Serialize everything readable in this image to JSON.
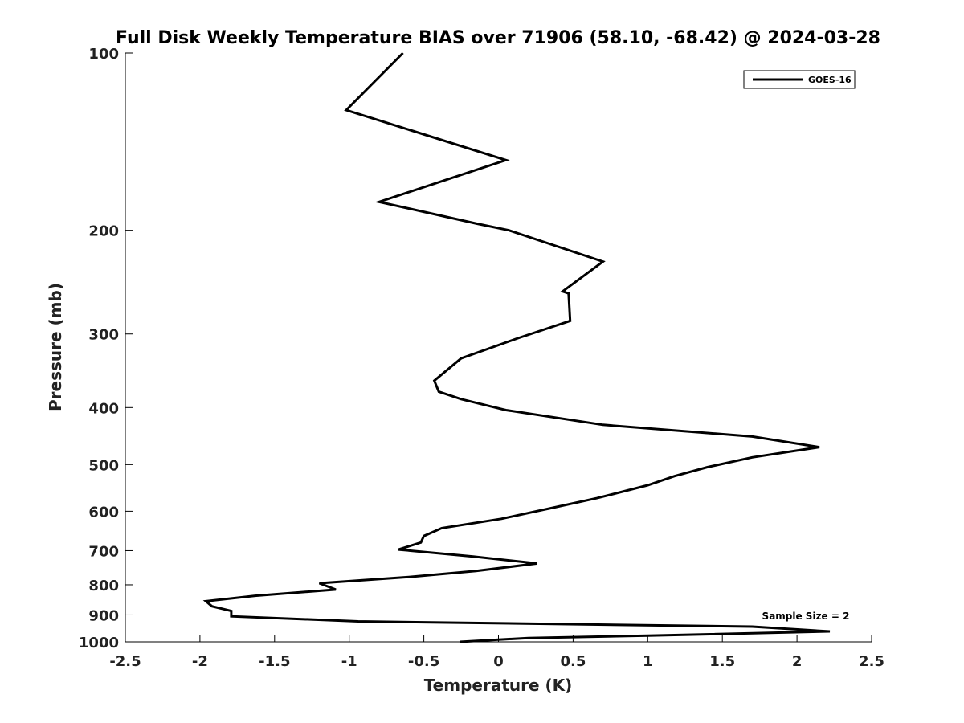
{
  "chart_data": {
    "type": "line",
    "title": "Full Disk Weekly Temperature BIAS over 71906 (58.10, -68.42) @ 2024-03-28",
    "xlabel": "Temperature (K)",
    "ylabel": "Pressure (mb)",
    "xlim": [
      -2.5,
      2.5
    ],
    "ylim": [
      100,
      1000
    ],
    "y_scale": "log",
    "y_reversed": true,
    "grid": false,
    "x_ticks": [
      -2.5,
      -2,
      -1.5,
      -1,
      -0.5,
      0,
      0.5,
      1,
      1.5,
      2,
      2.5
    ],
    "x_tick_labels": [
      "-2.5",
      "-2",
      "-1.5",
      "-1",
      "-0.5",
      "0",
      "0.5",
      "1",
      "1.5",
      "2",
      "2.5"
    ],
    "y_ticks": [
      100,
      200,
      300,
      400,
      500,
      600,
      700,
      800,
      900,
      1000
    ],
    "y_tick_labels": [
      "100",
      "200",
      "300",
      "400",
      "500",
      "600",
      "700",
      "800",
      "900",
      "1000"
    ],
    "legend": {
      "position": "top-right",
      "entries": [
        "GOES-16"
      ]
    },
    "series": [
      {
        "name": "GOES-16",
        "color": "#000000",
        "points": [
          [
            -0.64,
            100
          ],
          [
            -1.02,
            125
          ],
          [
            0.05,
            152
          ],
          [
            -0.8,
            179
          ],
          [
            -0.14,
            195
          ],
          [
            0.07,
            200
          ],
          [
            0.7,
            226
          ],
          [
            0.43,
            254
          ],
          [
            0.47,
            256
          ],
          [
            0.48,
            285
          ],
          [
            0.13,
            305
          ],
          [
            -0.25,
            330
          ],
          [
            -0.43,
            360
          ],
          [
            -0.4,
            376
          ],
          [
            -0.25,
            387
          ],
          [
            0.05,
            404
          ],
          [
            0.7,
            428
          ],
          [
            1.7,
            448
          ],
          [
            2.15,
            467
          ],
          [
            1.7,
            486
          ],
          [
            1.4,
            505
          ],
          [
            1.18,
            523
          ],
          [
            1.0,
            542
          ],
          [
            0.66,
            570
          ],
          [
            0.35,
            593
          ],
          [
            0.02,
            618
          ],
          [
            -0.38,
            641
          ],
          [
            -0.5,
            661
          ],
          [
            -0.52,
            678
          ],
          [
            -0.67,
            697
          ],
          [
            -0.17,
            716
          ],
          [
            0.26,
            736
          ],
          [
            -0.15,
            758
          ],
          [
            -0.6,
            776
          ],
          [
            -1.2,
            795
          ],
          [
            -1.09,
            815
          ],
          [
            -1.63,
            835
          ],
          [
            -1.96,
            853
          ],
          [
            -1.92,
            870
          ],
          [
            -1.79,
            886
          ],
          [
            -1.79,
            905
          ],
          [
            -0.94,
            923
          ],
          [
            1.7,
            942
          ],
          [
            2.22,
            960
          ],
          [
            1.0,
            976
          ],
          [
            0.2,
            985
          ],
          [
            -0.26,
            1000
          ]
        ]
      }
    ],
    "annotations": [
      "Sample Size = 2"
    ]
  }
}
